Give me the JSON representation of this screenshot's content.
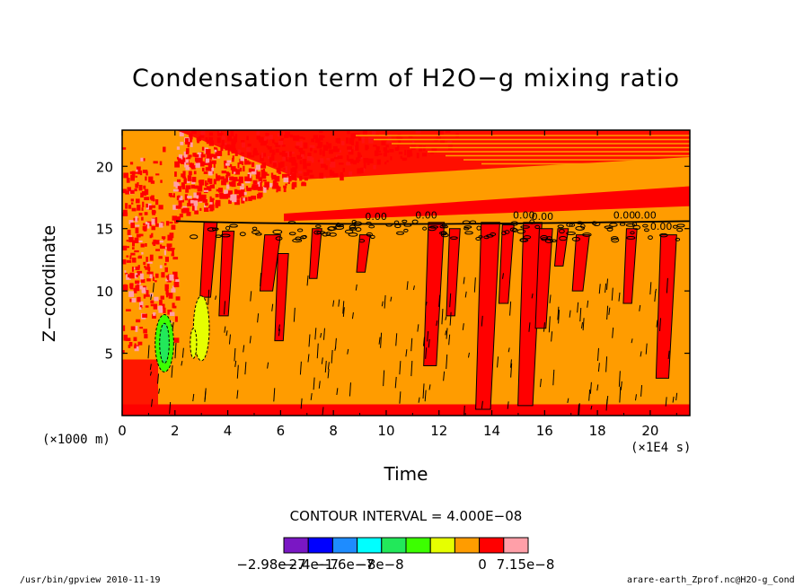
{
  "chart_data": {
    "type": "heatmap",
    "title": "Condensation term of H2O−g mixing ratio",
    "xlabel": "Time",
    "ylabel": "Z−coordinate",
    "x_unit": "(×1E4 s)",
    "y_unit": "(×1000 m)",
    "xlim": [
      0,
      21.5
    ],
    "ylim": [
      0,
      22.9
    ],
    "x_ticks": [
      0,
      2,
      4,
      6,
      8,
      10,
      12,
      14,
      16,
      18,
      20
    ],
    "y_ticks": [
      5,
      10,
      15,
      20
    ],
    "contour_interval": "CONTOUR INTERVAL = 4.000E−08",
    "contour_labels": [
      "0.00",
      "0.00",
      "0.00",
      "0.00",
      "0.00",
      "0.00",
      "0.00"
    ],
    "legend": {
      "colors": [
        "#7a17c4",
        "#0000ff",
        "#1e8cff",
        "#00ffff",
        "#22e85a",
        "#3cff00",
        "#e6ff00",
        "#ff9c00",
        "#ff0000",
        "#ff9fa8"
      ],
      "labels": [
        "−2.98e−7",
        "−2.4e−7",
        "−1.6e−7",
        "−8e−8",
        "0",
        "7.15e−8"
      ]
    }
  },
  "footer": {
    "left": "/usr/bin/gpview  2010-11-19",
    "right": "arare-earth_Zprof.nc@H2O-g_Cond"
  }
}
